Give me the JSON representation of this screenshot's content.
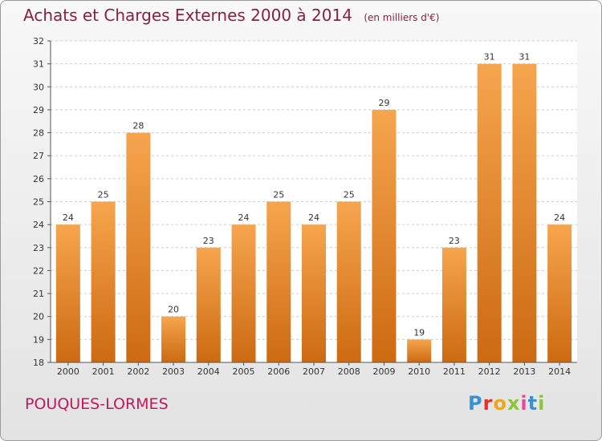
{
  "header": {
    "title": "Achats et Charges Externes 2000 à 2014",
    "subtitle": "(en milliers d'€)"
  },
  "footer": {
    "commune": "POUQUES-LORMES",
    "logo": "Proxiti"
  },
  "colors": {
    "bar_top": "#f6a54e",
    "bar_bottom": "#cc6a12",
    "title": "#8a2040",
    "commune": "#c2185b"
  },
  "chart_data": {
    "type": "bar",
    "title": "Achats et Charges Externes 2000 à 2014",
    "xlabel": "",
    "ylabel": "",
    "categories": [
      "2000",
      "2001",
      "2002",
      "2003",
      "2004",
      "2005",
      "2006",
      "2007",
      "2008",
      "2009",
      "2010",
      "2011",
      "2012",
      "2013",
      "2014"
    ],
    "values": [
      24,
      25,
      28,
      20,
      23,
      24,
      25,
      24,
      25,
      29,
      19,
      23,
      31,
      31,
      24
    ],
    "ylim": [
      18,
      32
    ],
    "yticks": [
      18,
      19,
      20,
      21,
      22,
      23,
      24,
      25,
      26,
      27,
      28,
      29,
      30,
      31,
      32
    ],
    "grid": true
  }
}
